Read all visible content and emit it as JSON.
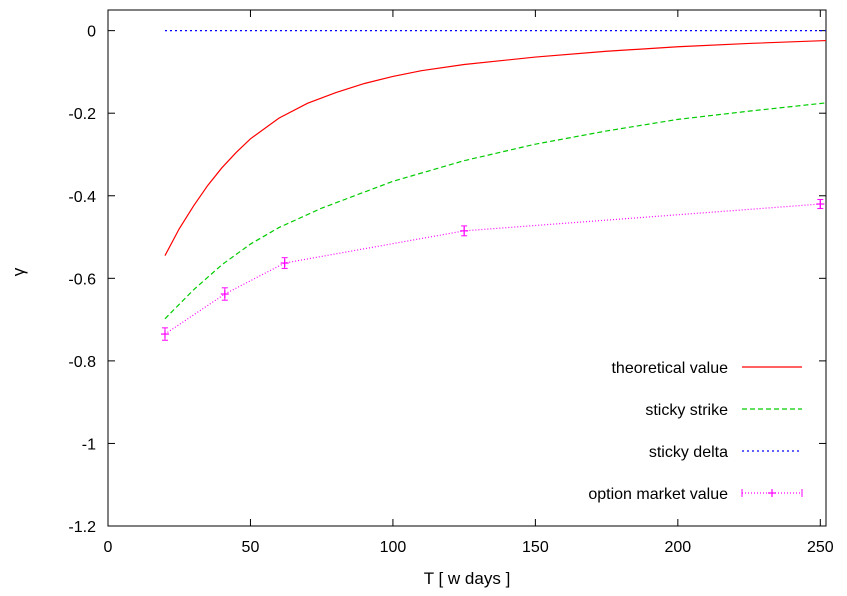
{
  "chart_data": {
    "type": "line",
    "xlabel": "T [ w days ]",
    "ylabel": "γ",
    "xlim": [
      0,
      252
    ],
    "ylim": [
      -1.2,
      0.05
    ],
    "xticks": [
      {
        "value": 0,
        "label": "0"
      },
      {
        "value": 50,
        "label": "50"
      },
      {
        "value": 100,
        "label": "100"
      },
      {
        "value": 150,
        "label": "150"
      },
      {
        "value": 200,
        "label": "200"
      },
      {
        "value": 250,
        "label": "250"
      }
    ],
    "yticks": [
      {
        "value": 0,
        "label": "0"
      },
      {
        "value": -0.2,
        "label": "-0.2"
      },
      {
        "value": -0.4,
        "label": "-0.4"
      },
      {
        "value": -0.6,
        "label": "-0.6"
      },
      {
        "value": -0.8,
        "label": "-0.8"
      },
      {
        "value": -1,
        "label": "-1"
      },
      {
        "value": -1.2,
        "label": "-1.2"
      }
    ],
    "grid": false,
    "legend_position": "bottom-right",
    "series": [
      {
        "name": "theoretical value",
        "color": "#ff0000",
        "dash": "solid",
        "x": [
          20,
          25,
          30,
          35,
          40,
          45,
          50,
          60,
          70,
          80,
          90,
          100,
          110,
          125,
          150,
          175,
          200,
          225,
          252
        ],
        "y": [
          -0.545,
          -0.48,
          -0.425,
          -0.375,
          -0.332,
          -0.295,
          -0.262,
          -0.212,
          -0.176,
          -0.15,
          -0.128,
          -0.111,
          -0.097,
          -0.082,
          -0.064,
          -0.05,
          -0.039,
          -0.031,
          -0.024
        ]
      },
      {
        "name": "sticky strike",
        "color": "#00cc00",
        "dash": "dashed",
        "x": [
          20,
          30,
          40,
          50,
          60,
          75,
          100,
          125,
          150,
          175,
          200,
          225,
          252
        ],
        "y": [
          -0.698,
          -0.628,
          -0.567,
          -0.517,
          -0.477,
          -0.43,
          -0.365,
          -0.315,
          -0.275,
          -0.243,
          -0.215,
          -0.195,
          -0.175
        ]
      },
      {
        "name": "sticky delta",
        "color": "#0000ff",
        "dash": "dotted",
        "x": [
          20,
          252
        ],
        "y": [
          0,
          0
        ]
      },
      {
        "name": "option market value",
        "color": "#ff00ff",
        "dash": "dotted-markers",
        "x": [
          20,
          41,
          62,
          125,
          250
        ],
        "y": [
          -0.735,
          -0.638,
          -0.563,
          -0.485,
          -0.42
        ],
        "yerr": [
          0.015,
          0.015,
          0.013,
          0.012,
          0.011
        ]
      }
    ]
  }
}
